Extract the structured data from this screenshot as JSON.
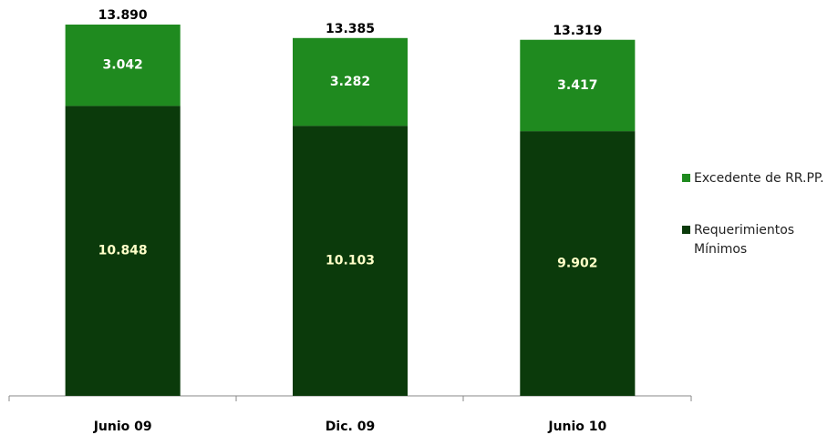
{
  "chart_data": {
    "type": "stacked_bar",
    "categories": [
      "Junio 09",
      "Dic. 09",
      "Junio 10"
    ],
    "series": [
      {
        "name": "Requerimientos Mínimos",
        "color": "#0b3a0b",
        "values": [
          10848,
          10103,
          9902
        ],
        "value_labels": [
          "10.848",
          "10.103",
          "9.902"
        ]
      },
      {
        "name": "Excedente de RR.PP.",
        "color": "#1f8a1f",
        "values": [
          3042,
          3282,
          3417
        ],
        "value_labels": [
          "3.042",
          "3.282",
          "3.417"
        ]
      }
    ],
    "totals": {
      "values": [
        13890,
        13385,
        13319
      ],
      "value_labels": [
        "13.890",
        "13.385",
        "13.319"
      ]
    }
  }
}
